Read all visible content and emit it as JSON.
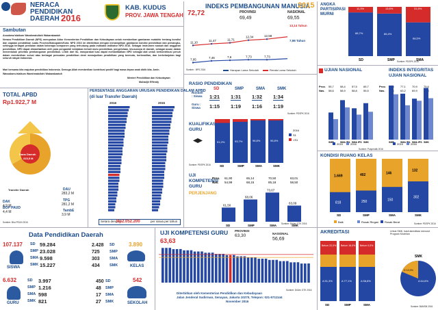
{
  "header": {
    "line1": "NERACA",
    "line2": "PENDIDIKAN",
    "line3": "DAERAH",
    "year": "2016",
    "kab": "KAB. KUDUS",
    "prov": "PROV. JAWA TENGAH"
  },
  "ipm": {
    "title": "INDEKS PEMBANGUNAN MANUSIA",
    "year": "2015",
    "value": "72,72",
    "prov_label": "PROVINSI",
    "prov_value": "69,49",
    "nas_label": "NASIONAL",
    "nas_value": "69,55",
    "harapan_note": "13,14 Tahun",
    "rata_note": "7,98 Tahun",
    "legend1": "Harapan Lama Sekolah",
    "legend2": "Rerata Lama Sekolah",
    "source": "Sumber : BPS 2016",
    "top_vals": [
      "11,10",
      "11,47",
      "11,71",
      "12,34",
      "12,58"
    ],
    "bot_vals": [
      "7,05",
      "7,46",
      "7,6",
      "7,73",
      "7,73"
    ]
  },
  "apk": {
    "title1": "ANGKA",
    "title2": "PARTISIPASI",
    "title3": "MURNI",
    "cats": [
      "SD",
      "SMP",
      "SMA"
    ],
    "top_vals": [
      "11,3%",
      "13,6%",
      "31,5%"
    ],
    "bot_vals": [
      "88,7%",
      "86,4%",
      "68,5%"
    ],
    "source": "Sumber: PDSPK 2016"
  },
  "sambutan": {
    "title": "Sambutan",
    "greeting": "Assalamu'alaikum Warahmatullahi Wabarakaatuh",
    "body1": "Neraca Pendidikan Daerah (NPD) merupakan Aktor Kementerian Pendidikan dan Kebudayaan untuk memberikan gambaran mutakhir tentang kondisi dan capaian pendidikan suatu Provinsi/Kabupaten/Kota. NPD 2016 ini diterbitkan dengan menampilkan gambaran kondisi pendidikan dan pemangku, sehingga terdapat penilaian dalam beberapa komponen yang terhubung pada indikator-indikator NPD 2016. Sebagai instrumen naskah dan anggaran pendidikan, NPD dapat dimanfaatkan oleh para pengambil kebijakan terkait mutu pendidikan, pengelolaan, khususnya di daerah, sebagai acuan dalam menentukan prioritas pembangunan pendidikan. Lebih dari itu, masyarakat luas dapat memanfaatkan NPD sebagai alat untuk berkontribusi penuh dalam memberikan solusi atas berbagai persoalan pendidikan demi mewujudkan pendidikan yang bermutu, berkeadilan, dan berkelanjutan bagi seluruh rakyat Indonesia.",
    "body2": "Mari bersama kita majukan pendidikan Indonesia. Semoga Allah memberikan kontribusi positif bagi masa depan anak didik kita. Amin.",
    "closing": "Wassalamu'alaikum Warahmatullahi Wabarakaatuh",
    "signer_title": "Menteri Pendidikan dan Kebudayaan",
    "signer_name": "Muhadjir Effendy"
  },
  "apbd": {
    "title": "TOTAL APBD",
    "value": "Rp1.922,7 M",
    "dana_daerah_label": "Dana Daerah",
    "dana_daerah_value": "315,5 M",
    "transfer_label": "Transfer Daerah",
    "transfer_value": "DAU",
    "rows": [
      {
        "k": "DAU",
        "v": "283,2 M"
      },
      {
        "k": "TPG",
        "v": "281,2 M"
      },
      {
        "k": "DAK",
        "v": "4,9 M"
      },
      {
        "k": "TambE",
        "v": "3,9 M"
      },
      {
        "k": "BOP PAUD",
        "v": "4,4 M"
      }
    ],
    "source": "Sumber: Biro PELIN 2016"
  },
  "persentase": {
    "title": "PERSENTASE ANGGARAN URUSAN PENDIDIKAN DALAM APBD",
    "subtitle": "(di luar Transfer Daerah)",
    "year1": "2016",
    "year2": "2015",
    "footer_label": "Setara dengan:",
    "footer_value": "Rp2.052.200",
    "footer_unit": "per siswa per tahun",
    "source": "Sumber: DJPK Kemenkeu 2016"
  },
  "rasio": {
    "title": "RASIO PENDIDIKAN",
    "row1_label": "Rombel : Siswa",
    "row2_label": "Guru : Siswa",
    "cats": [
      "SD",
      "SMP",
      "SMA",
      "SMK"
    ],
    "row1": [
      "1:21",
      "1:31",
      "1:32",
      "1:34"
    ],
    "row2": [
      "1:15",
      "1:19",
      "1:16",
      "1:19"
    ],
    "source": "Sumber: PDSPK 2016"
  },
  "kualifikasi": {
    "title1": "KUALIFIKASI",
    "title2": "GURU",
    "cats": [
      "SD",
      "SMP",
      "SMA",
      "SMK"
    ],
    "vals": [
      "91,2%",
      "93,7%",
      "96,8%",
      "96,8%"
    ],
    "legend": [
      "2016",
      "S1",
      "<S1"
    ],
    "source": "Sumber: PDSPK 2016"
  },
  "ujian_nasional": {
    "title": "UJIAN NASIONAL",
    "cats": [
      "SMP",
      "SMA IPA",
      "SMA IPS",
      "SMK"
    ],
    "prov_label": "Prov.",
    "nas_label": "Nas.",
    "prov": [
      "55,7",
      "58,4",
      "57,5",
      "65,7"
    ],
    "nas": [
      "58,6",
      "58,9",
      "58,8",
      "55,5"
    ],
    "v2015": [
      58.0,
      66.2,
      60.8,
      64.2
    ],
    "v2016": [
      53.6,
      61.4,
      56.6,
      58.5
    ],
    "legend": [
      "2015",
      "2016"
    ],
    "source": "Sumber: Puspendik 2016"
  },
  "integritas": {
    "title1": "INDEKS INTEGRITAS",
    "title2": "UJIAN NASIONAL",
    "prov_label": "Prov.",
    "nas_label": "Nas.",
    "prov": [
      "80,8",
      "77,1",
      "70,9",
      "75,6"
    ],
    "nas": [
      "70,4",
      "63,2",
      "69,9",
      "70,3"
    ],
    "cats": [
      "SMP",
      "SMA IPA",
      "SMA IPS",
      "SMK"
    ],
    "v2015": [
      75.9,
      70.5,
      67.2,
      74.3
    ],
    "v2016": [
      70.1,
      62.8,
      65.8,
      67.5
    ],
    "legend": [
      "2015",
      "2016"
    ],
    "source": "Sumber: Puspendik 2016"
  },
  "ukg": {
    "title1": "UJI",
    "title2": "KOMPETENSI",
    "title3": "GURU",
    "sub": "PERJENJANG",
    "prov_label": "Prov.",
    "nas_label": "Nas.",
    "prov": [
      "61,90",
      "65,14",
      "70,50",
      "63,01"
    ],
    "nas": [
      "54,99",
      "68,15",
      "85,18",
      "58,50"
    ],
    "cats": [
      "SD",
      "SMP",
      "SMA",
      "SMK"
    ],
    "vals": [
      "61,50",
      "68,06",
      "73,67",
      "63,09"
    ],
    "source": "Sumber: DitJen GTK 2016"
  },
  "kondisi": {
    "title": "KONDISI RUANG KELAS",
    "cats": [
      "SD",
      "SMP",
      "SMA",
      "SMK"
    ],
    "baik": [
      "1.669",
      "402",
      "146",
      "132"
    ],
    "rusak": [
      "818",
      "250",
      "150",
      "302"
    ],
    "legend": [
      "Baik",
      "Rusak Ringan",
      "Rusak Berat"
    ],
    "source": "Sumber: PDSPK 2016"
  },
  "data_pd": {
    "title": "Data Pendidikan Daerah",
    "siswa_total": "107.137",
    "siswa_label": "SISWA",
    "sd": "59.284",
    "smp": "23.028",
    "sma": "9.598",
    "smk": "15.227",
    "sek_sd": "2.428",
    "sek_smp": "725",
    "sek_sma": "303",
    "sek_smk": "434",
    "kelas_total": "3.890",
    "kelas_label": "KELAS",
    "guru_total": "6.632",
    "guru_label": "GURU",
    "g_sd": "3.997",
    "g_smp": "1.216",
    "g_sma": "598",
    "g_smk": "821",
    "s_sd": "450",
    "s_smp": "48",
    "s_sma": "17",
    "s_smk": "27",
    "sekolah_total": "542",
    "sekolah_label": "SEKOLAH",
    "cat_sd": "SD",
    "cat_smp": "SMP",
    "cat_sma": "SMA",
    "cat_smk": "SMK"
  },
  "ukg2": {
    "title": "UJI KOMPETENSI GURU",
    "value": "63,63",
    "prov_label": "PROVINSI",
    "prov_value": "63,30",
    "nas_label": "NASIONAL",
    "nas_value": "56,69",
    "footer1": "Diterbitkan oleh Kementerian Pendidikan dan Kebudayaan",
    "footer2": "Jalan Jenderal Sudirman, Senayan, Jakarta 10270, Telepon: 021-5711144",
    "footer3": "November 2016",
    "source": "Sumber: DitJen GTK 2016"
  },
  "akreditasi": {
    "title": "AKREDITASI",
    "note": "Untuk SMK, hasil akreditasi menurut Program Keahlian",
    "cats": [
      "SD",
      "SMP",
      "SMA",
      "SMK"
    ],
    "top": [
      "Belum 22,0%",
      "Belum 16,0%",
      "Belum 0,0%",
      "D 12,0%"
    ],
    "vals": [
      "A 51,3%",
      "A 77,1%",
      "A 58,8%",
      "A 64,6%"
    ],
    "source": "Sumber: BANSM 2016"
  }
}
